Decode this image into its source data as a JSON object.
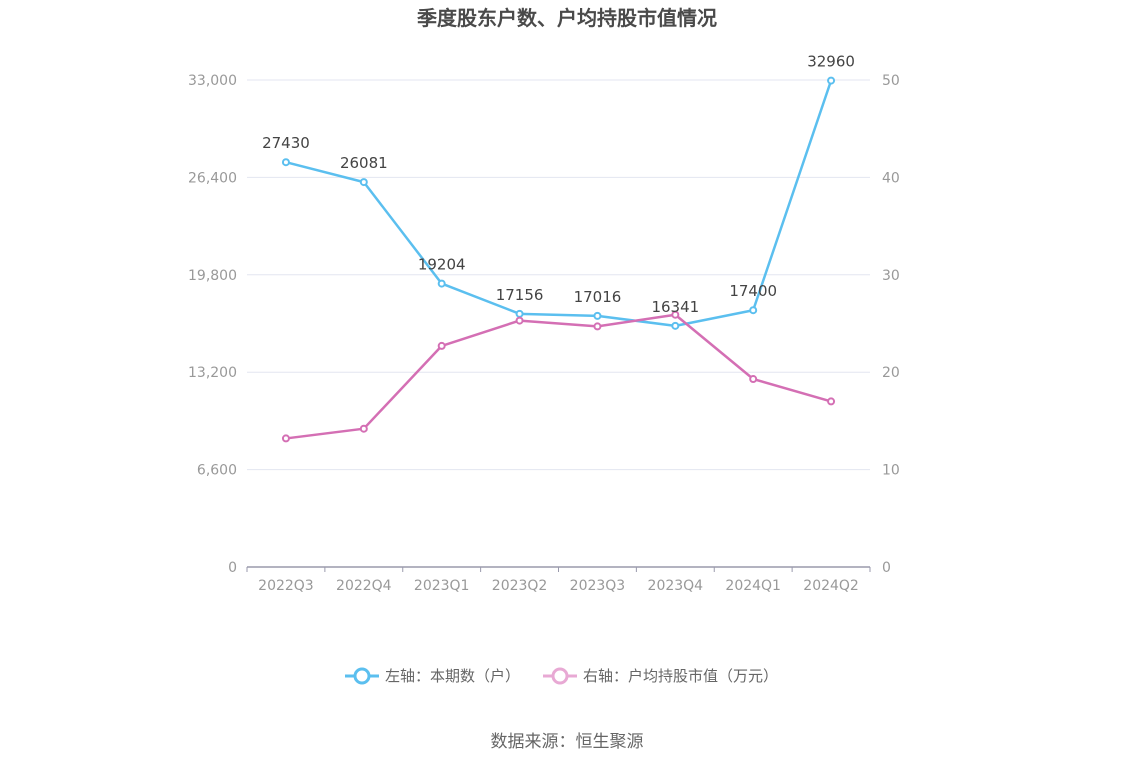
{
  "chart_data": {
    "type": "line",
    "title": "季度股东户数、户均持股市值情况",
    "categories": [
      "2022Q3",
      "2022Q4",
      "2023Q1",
      "2023Q2",
      "2023Q3",
      "2023Q4",
      "2024Q1",
      "2024Q2"
    ],
    "y_left": {
      "ticks": [
        "0",
        "6,600",
        "13,200",
        "19,800",
        "26,400",
        "33,000"
      ],
      "ylim": [
        0,
        33000
      ]
    },
    "y_right": {
      "ticks": [
        "0",
        "10",
        "20",
        "30",
        "40",
        "50"
      ],
      "ylim": [
        0,
        50
      ]
    },
    "series": [
      {
        "name": "左轴：本期数（户）",
        "axis": "left",
        "color": "#5bbfef",
        "values": [
          27430,
          26081,
          19204,
          17156,
          17016,
          16341,
          17400,
          32960
        ],
        "labels": [
          "27430",
          "26081",
          "19204",
          "17156",
          "17016",
          "16341",
          "17400",
          "32960"
        ]
      },
      {
        "name": "右轴：户均持股市值（万元）",
        "axis": "right",
        "color": "#d46fb4",
        "values": [
          13.2,
          14.2,
          22.7,
          25.3,
          24.7,
          25.9,
          19.3,
          17.0
        ]
      }
    ],
    "grid": true,
    "legend_position": "bottom-center"
  },
  "footer": {
    "source": "数据来源：恒生聚源"
  }
}
